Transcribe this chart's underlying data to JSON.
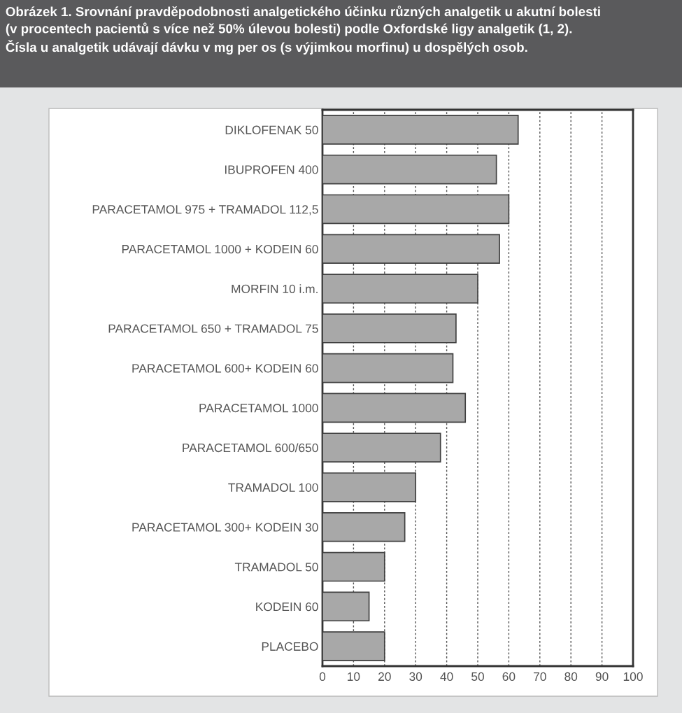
{
  "chart_data": {
    "type": "bar",
    "orientation": "horizontal",
    "title": "Obrázek 1. Srovnání pravděpodobnosti analgetického účinku různých analgetik u akutní bolesti\n(v procentech pacientů s více než 50% úlevou bolesti) podle Oxfordské ligy analgetik (1, 2).\nČísla u analgetik udávají dávku v mg per os (s výjimkou morfinu) u dospělých osob.",
    "categories": [
      "DIKLOFENAK 50",
      "IBUPROFEN 400",
      "PARACETAMOL 975 + TRAMADOL 112,5",
      "PARACETAMOL 1000 + KODEIN 60",
      "MORFIN 10 i.m.",
      "PARACETAMOL 650 + TRAMADOL 75",
      "PARACETAMOL 600+ KODEIN 60",
      "PARACETAMOL 1000",
      "PARACETAMOL 600/650",
      "TRAMADOL 100",
      "PARACETAMOL 300+ KODEIN 30",
      "TRAMADOL 50",
      "KODEIN 60",
      "PLACEBO"
    ],
    "values": [
      63,
      56,
      60,
      57,
      50,
      43,
      42,
      46,
      38,
      30,
      26.5,
      20,
      15,
      20
    ],
    "color": "#a8a8a8",
    "xlim": [
      0,
      100
    ],
    "xticks": [
      0,
      10,
      20,
      30,
      40,
      50,
      60,
      70,
      80,
      90,
      100
    ],
    "grid": "x",
    "legend": false
  }
}
